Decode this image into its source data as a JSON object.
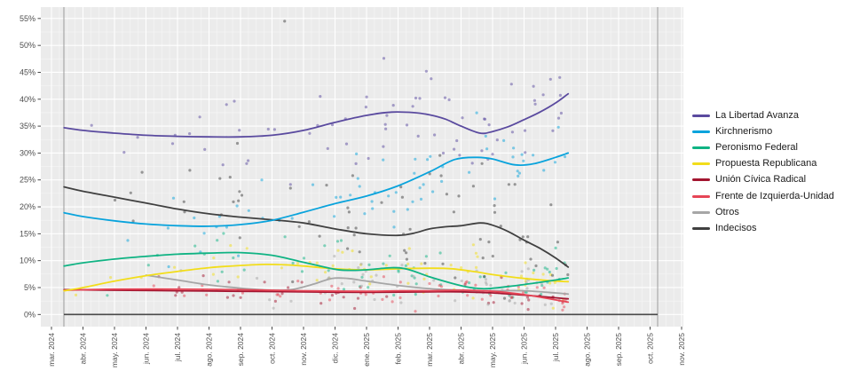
{
  "figure": {
    "kind": "polling-trend-chart",
    "locale": "es",
    "plot_bg": "#ebebeb",
    "outer_bg": "#ffffff",
    "grid_major_color": "#ffffff",
    "grid_minor_color": "#f7f7f7",
    "tick_mark_color": "#333333",
    "tick_label_color": "#4d4d4d"
  },
  "y_axis": {
    "tick_labels": [
      "0%",
      "5%",
      "10%",
      "15%",
      "20%",
      "25%",
      "30%",
      "35%",
      "40%",
      "45%",
      "50%",
      "55%"
    ],
    "tick_values": [
      0,
      5,
      10,
      15,
      20,
      25,
      30,
      35,
      40,
      45,
      50,
      55
    ]
  },
  "x_axis": {
    "tick_labels": [
      "mar. 2024",
      "abr. 2024",
      "may. 2024",
      "jun. 2024",
      "jul. 2024",
      "ago. 2024",
      "sep. 2024",
      "oct. 2024",
      "nov. 2024",
      "dic. 2024",
      "ene. 2025",
      "feb. 2025",
      "mar. 2025",
      "abr. 2025",
      "may. 2025",
      "jun. 2025",
      "jul. 2025",
      "ago. 2025",
      "sep. 2025",
      "oct. 2025",
      "nov. 2025"
    ]
  },
  "legend": {
    "entries": [
      {
        "id": "lla",
        "label": "La Libertad Avanza",
        "color": "#5a4a9f"
      },
      {
        "id": "k",
        "label": "Kirchnerismo",
        "color": "#09a3dc"
      },
      {
        "id": "pf",
        "label": "Peronismo Federal",
        "color": "#0fb383"
      },
      {
        "id": "pro",
        "label": "Propuesta Republicana",
        "color": "#f2dd1a"
      },
      {
        "id": "ucr",
        "label": "Unión Cívica Radical",
        "color": "#a31530"
      },
      {
        "id": "fit",
        "label": "Frente de Izquierda-Unidad",
        "color": "#e64556"
      },
      {
        "id": "otros",
        "label": "Otros",
        "color": "#a6a6a6"
      },
      {
        "id": "indecisos",
        "label": "Indecisos",
        "color": "#404040"
      }
    ]
  },
  "markers": {
    "vline_start_m": 0.394,
    "vline_end_m": 19.24,
    "vline_color": "#9b9b9b",
    "baseline_pct": 0,
    "baseline_color": "#4a4a4a"
  },
  "chart_data": {
    "type": "scatter",
    "note": "poll scatter with smoothed trend lines",
    "x_unit": "months_after_mar_2024_tick",
    "y_unit": "percent",
    "ylim": [
      0,
      55
    ],
    "series": [
      {
        "id": "lla",
        "name": "La Libertad Avanza",
        "color": "#5a4a9f",
        "trend": [
          [
            0.4,
            34.7
          ],
          [
            1,
            34.2
          ],
          [
            2,
            33.7
          ],
          [
            3,
            33.3
          ],
          [
            4,
            33.1
          ],
          [
            5,
            33.0
          ],
          [
            6,
            33.0
          ],
          [
            7,
            33.3
          ],
          [
            8,
            34.2
          ],
          [
            9,
            35.7
          ],
          [
            10,
            37.0
          ],
          [
            10.8,
            37.6
          ],
          [
            11.5,
            37.5
          ],
          [
            12,
            37.1
          ],
          [
            12.5,
            36.3
          ],
          [
            13,
            35.0
          ],
          [
            13.6,
            33.7
          ],
          [
            14,
            34.0
          ],
          [
            14.5,
            34.9
          ],
          [
            15,
            36.2
          ],
          [
            15.5,
            37.6
          ],
          [
            16,
            39.3
          ],
          [
            16.4,
            41.0
          ]
        ],
        "scatter": {
          "seed": 11,
          "n": 66,
          "sd": 4.2,
          "m0": 0.4,
          "m1": 16.4
        }
      },
      {
        "id": "k",
        "name": "Kirchnerismo",
        "color": "#09a3dc",
        "trend": [
          [
            0.4,
            18.9
          ],
          [
            1,
            18.2
          ],
          [
            2,
            17.4
          ],
          [
            3,
            16.8
          ],
          [
            4,
            16.5
          ],
          [
            5,
            16.4
          ],
          [
            6,
            16.7
          ],
          [
            7,
            17.5
          ],
          [
            8,
            19.0
          ],
          [
            9,
            20.6
          ],
          [
            10,
            22.0
          ],
          [
            11,
            23.9
          ],
          [
            12,
            26.5
          ],
          [
            12.8,
            28.8
          ],
          [
            13.5,
            29.2
          ],
          [
            14,
            28.9
          ],
          [
            14.7,
            27.8
          ],
          [
            15.3,
            28.0
          ],
          [
            16,
            29.2
          ],
          [
            16.4,
            30.0
          ]
        ],
        "scatter": {
          "seed": 23,
          "n": 64,
          "sd": 3.6,
          "m0": 0.4,
          "m1": 16.4
        }
      },
      {
        "id": "pf",
        "name": "Peronismo Federal",
        "color": "#0fb383",
        "trend": [
          [
            0.4,
            9.0
          ],
          [
            1,
            9.6
          ],
          [
            2,
            10.3
          ],
          [
            3,
            10.8
          ],
          [
            4,
            11.2
          ],
          [
            5,
            11.4
          ],
          [
            6,
            11.5
          ],
          [
            7,
            11.0
          ],
          [
            8,
            9.7
          ],
          [
            9,
            8.4
          ],
          [
            9.5,
            8.2
          ],
          [
            10,
            8.3
          ],
          [
            10.8,
            8.7
          ],
          [
            11.3,
            8.4
          ],
          [
            12,
            7.0
          ],
          [
            12.7,
            5.8
          ],
          [
            13.3,
            5.0
          ],
          [
            13.8,
            4.8
          ],
          [
            14.5,
            5.2
          ],
          [
            15.3,
            5.8
          ],
          [
            16,
            6.4
          ],
          [
            16.4,
            6.8
          ]
        ],
        "scatter": {
          "seed": 37,
          "n": 60,
          "sd": 3.0,
          "m0": 0.4,
          "m1": 16.4
        }
      },
      {
        "id": "pro",
        "name": "Propuesta Republicana",
        "color": "#f2dd1a",
        "trend": [
          [
            0.4,
            4.4
          ],
          [
            1,
            5.0
          ],
          [
            2,
            6.2
          ],
          [
            3,
            7.2
          ],
          [
            4,
            8.0
          ],
          [
            5,
            8.7
          ],
          [
            6,
            9.1
          ],
          [
            6.8,
            9.3
          ],
          [
            7.5,
            9.2
          ],
          [
            8,
            9.0
          ],
          [
            9,
            8.5
          ],
          [
            10,
            8.3
          ],
          [
            11,
            8.5
          ],
          [
            12,
            8.6
          ],
          [
            12.7,
            8.5
          ],
          [
            13.5,
            7.9
          ],
          [
            14,
            7.4
          ],
          [
            15,
            6.7
          ],
          [
            16,
            6.2
          ],
          [
            16.4,
            6.1
          ]
        ],
        "scatter": {
          "seed": 41,
          "n": 55,
          "sd": 2.2,
          "m0": 0.4,
          "m1": 16.4
        }
      },
      {
        "id": "ucr",
        "name": "Unión Cívica Radical",
        "color": "#a31530",
        "trend": [
          [
            0.4,
            4.6
          ],
          [
            2,
            4.5
          ],
          [
            4,
            4.4
          ],
          [
            6,
            4.3
          ],
          [
            8,
            4.2
          ],
          [
            10,
            4.1
          ],
          [
            12,
            4.2
          ],
          [
            13,
            4.2
          ],
          [
            14,
            4.0
          ],
          [
            15,
            3.6
          ],
          [
            16,
            3.1
          ],
          [
            16.4,
            2.9
          ]
        ],
        "scatter": {
          "seed": 53,
          "n": 42,
          "sd": 1.3,
          "m0": 0.4,
          "m1": 16.4
        }
      },
      {
        "id": "fit",
        "name": "Frente de Izquierda-Unidad",
        "color": "#e64556",
        "trend": [
          [
            0.4,
            4.5
          ],
          [
            2,
            4.7
          ],
          [
            4,
            4.7
          ],
          [
            6,
            4.6
          ],
          [
            8,
            4.4
          ],
          [
            10,
            4.3
          ],
          [
            11,
            4.4
          ],
          [
            12,
            4.4
          ],
          [
            13,
            4.5
          ],
          [
            14,
            4.3
          ],
          [
            15,
            3.7
          ],
          [
            16,
            2.7
          ],
          [
            16.4,
            2.3
          ]
        ],
        "scatter": {
          "seed": 67,
          "n": 48,
          "sd": 1.3,
          "m0": 0.4,
          "m1": 16.4
        }
      },
      {
        "id": "otros",
        "name": "Otros",
        "color": "#a6a6a6",
        "trend": [
          [
            3,
            7.3
          ],
          [
            4,
            6.4
          ],
          [
            5,
            5.5
          ],
          [
            6,
            4.9
          ],
          [
            7,
            4.5
          ],
          [
            7.6,
            4.6
          ],
          [
            8.3,
            5.6
          ],
          [
            8.9,
            6.7
          ],
          [
            9.4,
            6.7
          ],
          [
            10,
            6.2
          ],
          [
            11,
            5.4
          ],
          [
            12,
            4.8
          ],
          [
            13,
            4.5
          ],
          [
            14,
            4.4
          ],
          [
            15,
            4.4
          ],
          [
            16,
            4.0
          ],
          [
            16.4,
            3.8
          ]
        ],
        "scatter": {
          "seed": 71,
          "n": 50,
          "sd": 1.8,
          "m0": 3.0,
          "m1": 16.4
        }
      },
      {
        "id": "indecisos",
        "name": "Indecisos",
        "color": "#404040",
        "trend": [
          [
            0.4,
            23.7
          ],
          [
            1,
            22.9
          ],
          [
            2,
            21.8
          ],
          [
            3,
            20.7
          ],
          [
            4,
            19.6
          ],
          [
            5,
            18.7
          ],
          [
            6,
            18.1
          ],
          [
            7,
            17.6
          ],
          [
            8,
            17.0
          ],
          [
            9,
            15.9
          ],
          [
            10,
            15.0
          ],
          [
            11,
            14.7
          ],
          [
            11.5,
            15.1
          ],
          [
            12,
            15.9
          ],
          [
            12.5,
            16.3
          ],
          [
            13,
            16.5
          ],
          [
            13.6,
            17.0
          ],
          [
            14,
            16.6
          ],
          [
            14.5,
            15.4
          ],
          [
            15,
            13.8
          ],
          [
            15.5,
            12.3
          ],
          [
            16,
            10.5
          ],
          [
            16.4,
            8.8
          ]
        ],
        "scatter": {
          "seed": 83,
          "n": 70,
          "sd": 6.5,
          "m0": 0.4,
          "m1": 16.4
        }
      }
    ],
    "outliers": [
      {
        "series": "indecisos",
        "m": 7.4,
        "pct": 54.5
      },
      {
        "series": "lla",
        "m": 10.55,
        "pct": 47.6
      },
      {
        "series": "lla",
        "m": 11.9,
        "pct": 45.2
      },
      {
        "series": "lla",
        "m": 12.05,
        "pct": 43.8
      },
      {
        "series": "lla",
        "m": 14.6,
        "pct": 42.8
      },
      {
        "series": "lla",
        "m": 15.3,
        "pct": 42.4
      },
      {
        "series": "indecisos",
        "m": 5.9,
        "pct": 31.8
      },
      {
        "series": "fit",
        "m": 11.55,
        "pct": 0.6
      }
    ]
  }
}
